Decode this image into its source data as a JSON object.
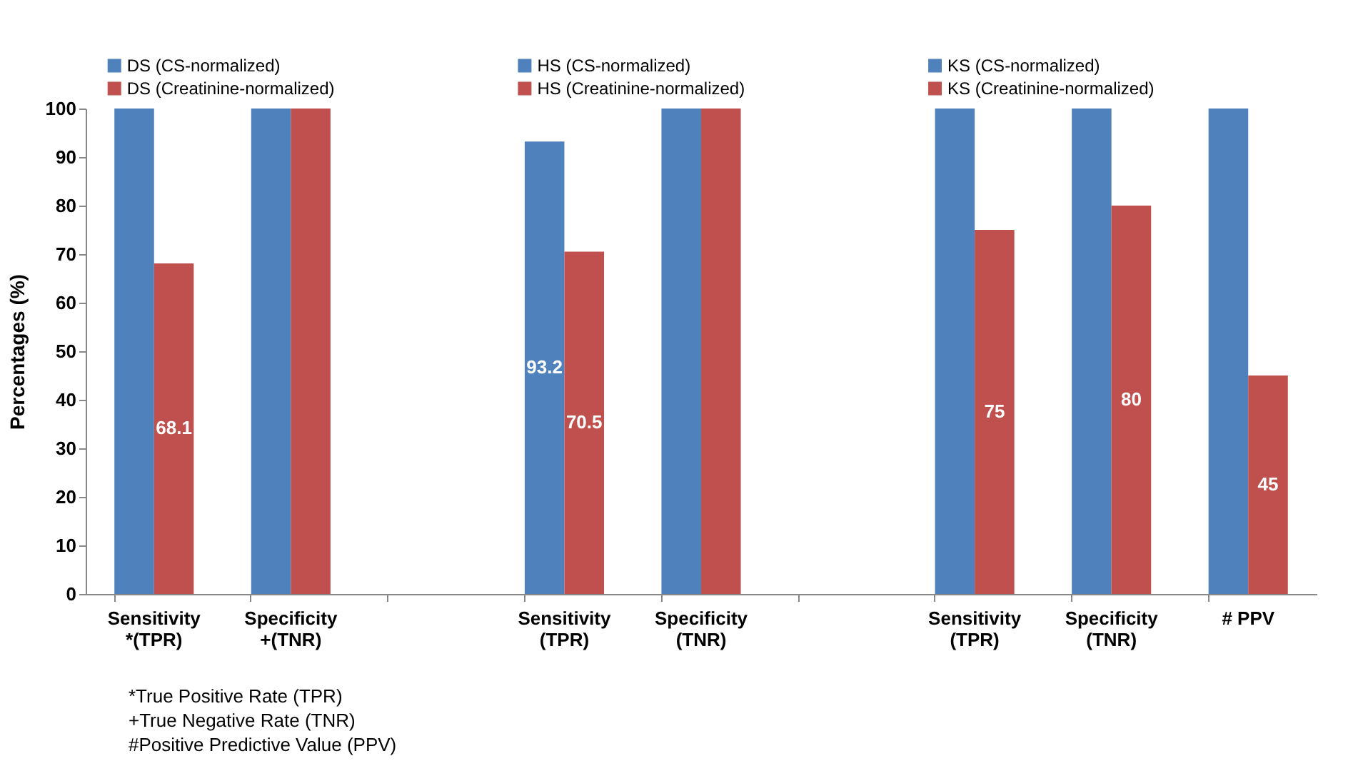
{
  "chart_data": {
    "type": "bar",
    "ylabel": "Percentages (%)",
    "categories": [
      "Sensitivity\n*(TPR)",
      "Specificity\n+(TNR)",
      null,
      "Sensitivity\n(TPR)",
      "Specificity\n(TNR)",
      null,
      "Sensitivity\n(TPR)",
      "Specificity\n(TNR)",
      "# PPV"
    ],
    "series": [
      {
        "name": "DS (CS-normalized)",
        "color": "#4f81bd",
        "values": [
          100,
          100,
          null,
          null,
          null,
          null,
          null,
          null,
          null
        ],
        "value_labels": [
          null,
          null,
          null,
          null,
          null,
          null,
          null,
          null,
          null
        ]
      },
      {
        "name": "DS (Creatinine-normalized)",
        "color": "#c0504d",
        "values": [
          68.1,
          100,
          null,
          null,
          null,
          null,
          null,
          null,
          null
        ],
        "value_labels": [
          "68.1",
          null,
          null,
          null,
          null,
          null,
          null,
          null,
          null
        ]
      },
      {
        "name": "HS (CS-normalized)",
        "color": "#4f81bd",
        "values": [
          null,
          null,
          null,
          93.2,
          100,
          null,
          null,
          null,
          null
        ],
        "value_labels": [
          null,
          null,
          null,
          "93.2",
          null,
          null,
          null,
          null,
          null
        ]
      },
      {
        "name": "HS (Creatinine-normalized)",
        "color": "#c0504d",
        "values": [
          null,
          null,
          null,
          70.5,
          100,
          null,
          null,
          null,
          null
        ],
        "value_labels": [
          null,
          null,
          null,
          "70.5",
          null,
          null,
          null,
          null,
          null
        ]
      },
      {
        "name": "KS (CS-normalized)",
        "color": "#4f81bd",
        "values": [
          null,
          null,
          null,
          null,
          null,
          null,
          100,
          100,
          100
        ],
        "value_labels": [
          null,
          null,
          null,
          null,
          null,
          null,
          null,
          null,
          null
        ]
      },
      {
        "name": "KS (Creatinine-normalized)",
        "color": "#c0504d",
        "values": [
          null,
          null,
          null,
          null,
          null,
          null,
          75,
          80,
          45
        ],
        "value_labels": [
          null,
          null,
          null,
          null,
          null,
          null,
          "75",
          "80",
          "45"
        ]
      }
    ],
    "ylim": [
      0,
      100
    ],
    "yticks": [
      0,
      10,
      20,
      30,
      40,
      50,
      60,
      70,
      80,
      90,
      100
    ],
    "grid": false,
    "legend": "top",
    "annotations": [
      "*True Positive Rate (TPR)",
      "+True Negative Rate (TNR)",
      "#Positive Predictive Value (PPV)"
    ]
  }
}
